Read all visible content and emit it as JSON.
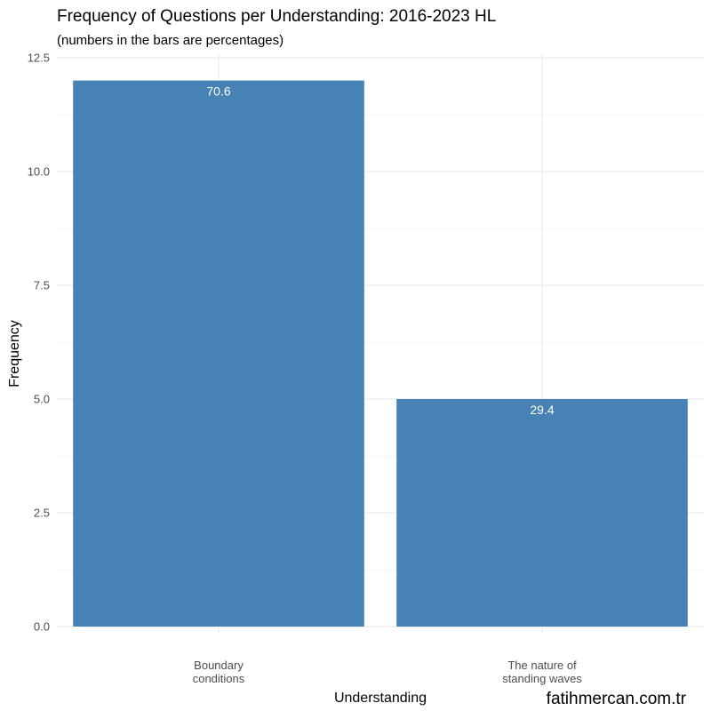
{
  "chart_data": {
    "type": "bar",
    "title": "Frequency of Questions per Understanding: 2016-2023 HL",
    "subtitle": "(numbers in the bars are percentages)",
    "xlabel": "Understanding",
    "ylabel": "Frequency",
    "categories": [
      [
        "Boundary",
        "conditions"
      ],
      [
        "The nature of",
        "standing waves"
      ]
    ],
    "values": [
      12,
      5
    ],
    "bar_labels": [
      "70.6",
      "29.4"
    ],
    "ylim": [
      0,
      12.5
    ],
    "yticks": [
      0,
      2.5,
      5,
      7.5,
      10,
      12.5
    ],
    "ytick_labels": [
      "0.0",
      "2.5",
      "5.0",
      "7.5",
      "10.0",
      "12.5"
    ],
    "grid": true,
    "bar_color": "#4682b4",
    "grid_color": "#ebebeb"
  },
  "caption": "fatihmercan.com.tr"
}
